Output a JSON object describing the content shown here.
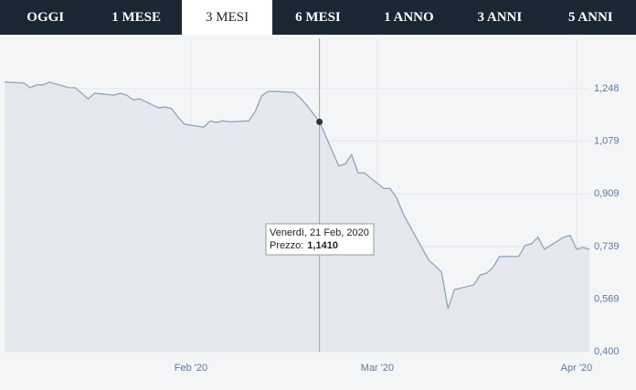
{
  "tabs": [
    "OGGI",
    "1 MESE",
    "3 MESI",
    "6 MESI",
    "1 ANNO",
    "3 ANNI",
    "5 ANNI"
  ],
  "active_tab": "3 MESI",
  "chart_data": {
    "type": "line",
    "x": [
      "2020-01-03",
      "2020-01-06",
      "2020-01-07",
      "2020-01-08",
      "2020-01-09",
      "2020-01-10",
      "2020-01-13",
      "2020-01-14",
      "2020-01-15",
      "2020-01-16",
      "2020-01-17",
      "2020-01-20",
      "2020-01-21",
      "2020-01-22",
      "2020-01-23",
      "2020-01-24",
      "2020-01-27",
      "2020-01-28",
      "2020-01-29",
      "2020-01-30",
      "2020-01-31",
      "2020-02-03",
      "2020-02-04",
      "2020-02-05",
      "2020-02-06",
      "2020-02-07",
      "2020-02-10",
      "2020-02-11",
      "2020-02-12",
      "2020-02-13",
      "2020-02-14",
      "2020-02-17",
      "2020-02-18",
      "2020-02-19",
      "2020-02-20",
      "2020-02-21",
      "2020-02-24",
      "2020-02-25",
      "2020-02-26",
      "2020-02-27",
      "2020-02-28",
      "2020-03-02",
      "2020-03-03",
      "2020-03-04",
      "2020-03-05",
      "2020-03-06",
      "2020-03-09",
      "2020-03-10",
      "2020-03-11",
      "2020-03-12",
      "2020-03-13",
      "2020-03-16",
      "2020-03-17",
      "2020-03-18",
      "2020-03-19",
      "2020-03-20",
      "2020-03-23",
      "2020-03-24",
      "2020-03-25",
      "2020-03-26",
      "2020-03-27",
      "2020-03-30",
      "2020-03-31",
      "2020-04-01",
      "2020-04-02",
      "2020-04-03"
    ],
    "series": [
      {
        "color": "#8ea4bd",
        "values": [
          1.269,
          1.266,
          1.251,
          1.26,
          1.26,
          1.269,
          1.251,
          1.251,
          1.233,
          1.215,
          1.233,
          1.227,
          1.233,
          1.227,
          1.212,
          1.215,
          1.186,
          1.189,
          1.183,
          1.156,
          1.133,
          1.124,
          1.144,
          1.139,
          1.144,
          1.141,
          1.144,
          1.174,
          1.224,
          1.239,
          1.239,
          1.236,
          1.218,
          1.195,
          1.168,
          1.141,
          0.999,
          1.005,
          1.035,
          0.976,
          0.976,
          0.926,
          0.926,
          0.896,
          0.846,
          0.807,
          0.695,
          0.677,
          0.656,
          0.538,
          0.6,
          0.615,
          0.647,
          0.653,
          0.671,
          0.707,
          0.707,
          0.742,
          0.748,
          0.769,
          0.73,
          0.769,
          0.775,
          0.73,
          0.736,
          0.73
        ]
      }
    ],
    "xlim": [
      "2020-01-03",
      "2020-04-03"
    ],
    "xticks": [
      {
        "value": "2020-02-01",
        "label": "Feb '20"
      },
      {
        "value": "2020-03-01",
        "label": "Mar '20"
      },
      {
        "value": "2020-04-01",
        "label": "Apr '20"
      }
    ],
    "ylim": [
      0.4,
      1.41
    ],
    "yticks": [
      {
        "value": 0.4,
        "label": "0,400"
      },
      {
        "value": 0.569,
        "label": "0,569"
      },
      {
        "value": 0.739,
        "label": "0,739"
      },
      {
        "value": 0.909,
        "label": "0,909"
      },
      {
        "value": 1.079,
        "label": "1,079"
      },
      {
        "value": 1.248,
        "label": "1,248"
      }
    ],
    "grid": true,
    "tooltip": {
      "index": 35,
      "date_label": "Venerdì, 21 Feb, 2020",
      "price_label": "Prezzo:",
      "price_value": "1,1410"
    }
  }
}
